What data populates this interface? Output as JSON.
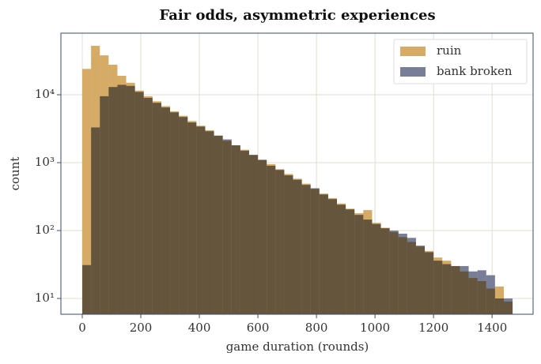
{
  "chart_data": {
    "type": "histogram",
    "title": "Fair odds, asymmetric experiences",
    "xlabel": "game duration (rounds)",
    "ylabel": "count",
    "bins": [
      0,
      30,
      60,
      90,
      120,
      150,
      180,
      210,
      240,
      270,
      300,
      330,
      360,
      390,
      420,
      450,
      480,
      510,
      540,
      570,
      600,
      630,
      660,
      690,
      720,
      750,
      780,
      810,
      840,
      870,
      900,
      930,
      960,
      990,
      1020,
      1050,
      1080,
      1110,
      1140,
      1170,
      1200,
      1230,
      1260,
      1290,
      1320,
      1350,
      1380,
      1410,
      1440,
      1470
    ],
    "series": [
      {
        "name": "ruin",
        "color": "#d6ab66",
        "values": [
          24000,
          52500,
          38000,
          27700,
          19000,
          15000,
          11500,
          9500,
          8000,
          6800,
          5700,
          4900,
          4100,
          3500,
          3000,
          2500,
          2100,
          1800,
          1550,
          1300,
          1100,
          950,
          800,
          680,
          580,
          490,
          410,
          350,
          300,
          250,
          210,
          180,
          200,
          130,
          110,
          95,
          80,
          68,
          58,
          50,
          40,
          36,
          30,
          25,
          20,
          18,
          14,
          15,
          9
        ]
      },
      {
        "name": "bank broken",
        "color": "#787e98",
        "values": [
          31,
          3300,
          9500,
          13000,
          14000,
          13500,
          11000,
          9000,
          7600,
          6500,
          5500,
          4700,
          3900,
          3400,
          2900,
          2500,
          2200,
          1800,
          1500,
          1300,
          1100,
          900,
          780,
          650,
          560,
          470,
          420,
          340,
          290,
          240,
          205,
          170,
          145,
          125,
          108,
          100,
          90,
          78,
          60,
          48,
          36,
          32,
          30,
          30,
          25,
          26,
          22,
          10,
          10
        ]
      }
    ],
    "xlim": [
      -73,
      1540
    ],
    "ylim": [
      5.85,
      80700
    ],
    "log_y": true,
    "xticks": [
      0,
      200,
      400,
      600,
      800,
      1000,
      1200,
      1400
    ],
    "yticks": [
      {
        "value": 10,
        "label": "10¹"
      },
      {
        "value": 100,
        "label": "10²"
      },
      {
        "value": 1000,
        "label": "10³"
      },
      {
        "value": 10000,
        "label": "10⁴"
      }
    ],
    "grid": true,
    "legend": "upper right"
  }
}
